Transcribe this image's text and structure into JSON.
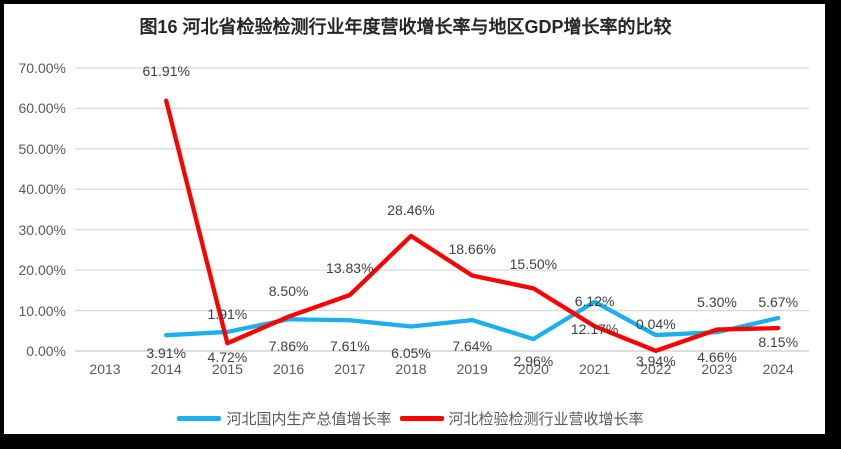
{
  "chart_data": {
    "type": "line",
    "title": "图16 河北省检验检测行业年度营收增长率与地区GDP增长率的比较",
    "categories": [
      "2013",
      "2014",
      "2015",
      "2016",
      "2017",
      "2018",
      "2019",
      "2020",
      "2021",
      "2022",
      "2023",
      "2024"
    ],
    "series": [
      {
        "name": "河北国内生产总值增长率",
        "color": "#1BAFEE",
        "values": [
          null,
          3.91,
          4.72,
          7.86,
          7.61,
          6.05,
          7.64,
          2.96,
          12.17,
          3.94,
          4.66,
          8.15
        ],
        "label_dy": [
          null,
          18,
          25,
          27,
          26,
          26,
          26,
          22,
          27,
          26,
          25,
          24
        ]
      },
      {
        "name": "河北检验检测行业营收增长率",
        "color": "#FF0000",
        "values": [
          null,
          61.91,
          1.91,
          8.5,
          13.83,
          28.46,
          18.66,
          15.5,
          6.12,
          0.04,
          5.3,
          5.67
        ],
        "label_dy": [
          null,
          -30,
          -29,
          -26,
          -27,
          -26,
          -27,
          -24,
          -25,
          -27,
          -28,
          -26
        ]
      }
    ],
    "y_axis": {
      "tick_labels": [
        "0.00%",
        "10.00%",
        "20.00%",
        "30.00%",
        "40.00%",
        "50.00%",
        "60.00%",
        "70.00%"
      ],
      "min": 0,
      "max": 70,
      "step": 10
    },
    "value_suffix": "%",
    "grid": "horizontal",
    "gridline_color": "#DADADA",
    "axis_line_color": "#C9C9C9",
    "tick_color": "#595959",
    "data_label_color": "#404040",
    "legend_position": "bottom"
  }
}
